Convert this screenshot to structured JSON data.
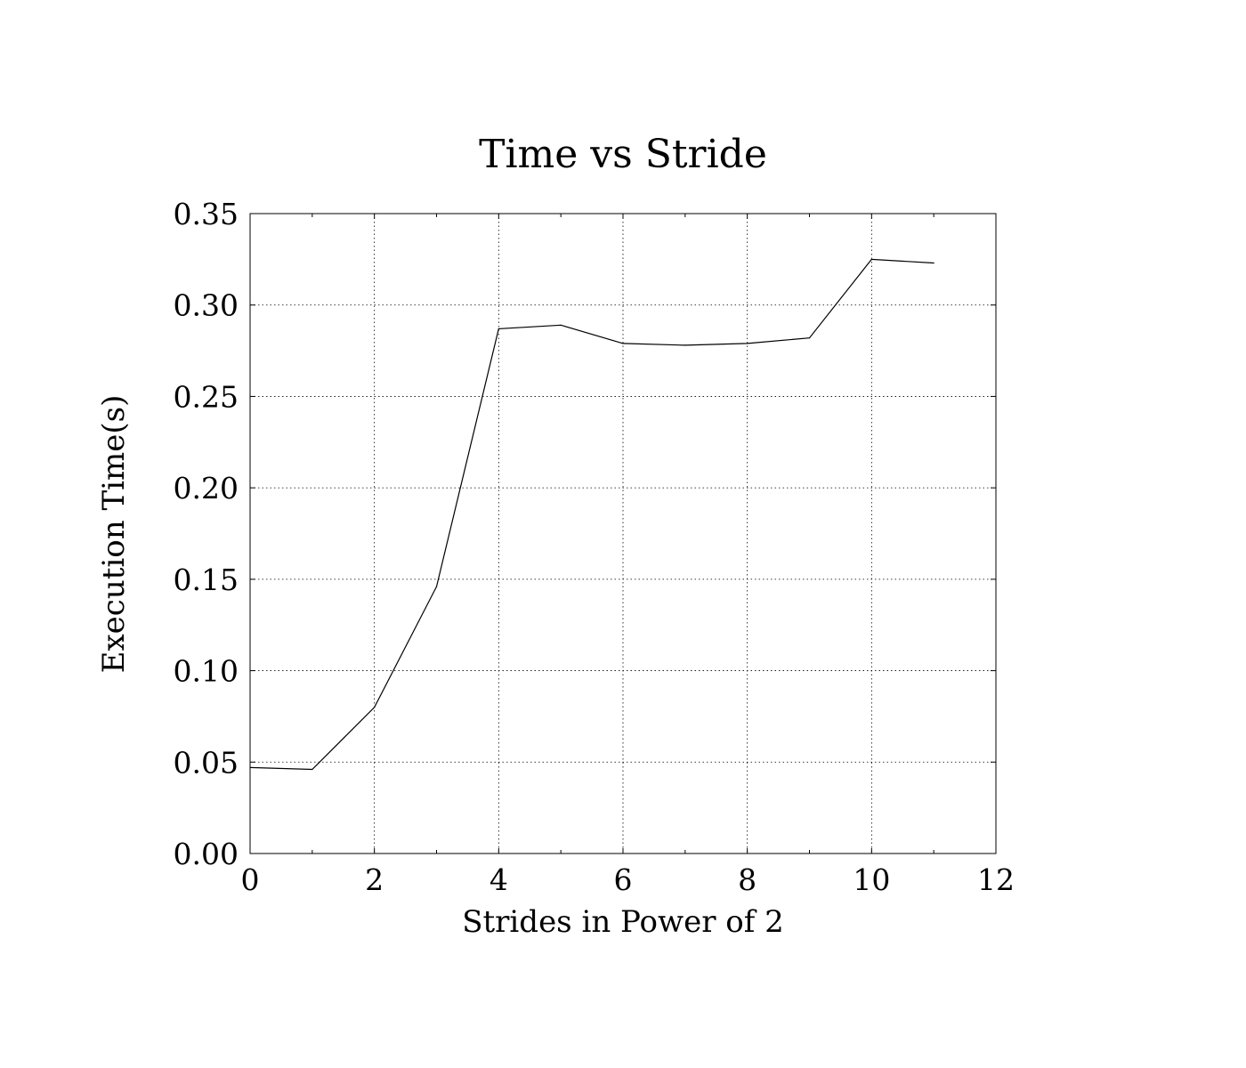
{
  "chart_data": {
    "type": "line",
    "title": "Time vs Stride",
    "xlabel": "Strides in Power of 2",
    "ylabel": "Execution Time(s)",
    "xlim": [
      0,
      12
    ],
    "ylim": [
      0,
      0.35
    ],
    "xticks": [
      0,
      2,
      4,
      6,
      8,
      10,
      12
    ],
    "xtick_labels": [
      "0",
      "2",
      "4",
      "6",
      "8",
      "10",
      "12"
    ],
    "yticks": [
      0,
      0.05,
      0.1,
      0.15,
      0.2,
      0.25,
      0.3,
      0.35
    ],
    "ytick_labels": [
      "0.00",
      "0.05",
      "0.10",
      "0.15",
      "0.20",
      "0.25",
      "0.30",
      "0.35"
    ],
    "grid": true,
    "legend": "none",
    "line_color": "#000000",
    "series": [
      {
        "x": [
          0,
          1,
          2,
          3,
          4,
          5,
          6,
          7,
          8,
          9,
          10,
          11
        ],
        "values": [
          0.047,
          0.046,
          0.08,
          0.146,
          0.287,
          0.289,
          0.279,
          0.278,
          0.279,
          0.282,
          0.325,
          0.323
        ]
      }
    ]
  }
}
